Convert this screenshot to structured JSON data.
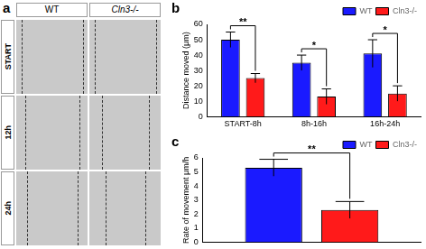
{
  "panel_labels": [
    "a",
    "b",
    "c"
  ],
  "image_grid": {
    "columns": [
      "WT",
      "Cln3-/-"
    ],
    "rows": [
      "START",
      "12h",
      "24h"
    ]
  },
  "chart_data": [
    {
      "type": "bar",
      "y_label": "Distance moved (μm)",
      "categories": [
        "START-8h",
        "8h-16h",
        "16h-24h"
      ],
      "series": [
        {
          "name": "WT",
          "color": "#1a1aff",
          "values": [
            50,
            35,
            41
          ],
          "errors": [
            5,
            5,
            9
          ]
        },
        {
          "name": "Cln3-/-",
          "color": "#ff1a1a",
          "values": [
            25,
            13,
            15
          ],
          "errors": [
            3,
            5,
            5
          ]
        }
      ],
      "significance": [
        {
          "category": "START-8h",
          "label": "**"
        },
        {
          "category": "8h-16h",
          "label": "*"
        },
        {
          "category": "16h-24h",
          "label": "*"
        }
      ],
      "ylim": [
        0,
        60
      ],
      "yticks": [
        0,
        10,
        20,
        30,
        40,
        50,
        60
      ],
      "grid": false,
      "legend": "top-right"
    },
    {
      "type": "bar",
      "y_label": "Rate of movement μm/h",
      "categories": [
        null
      ],
      "series": [
        {
          "name": "WT",
          "color": "#1a1aff",
          "values": [
            5.3
          ],
          "errors": [
            0.6
          ]
        },
        {
          "name": "Cln3-/-",
          "color": "#ff1a1a",
          "values": [
            2.3
          ],
          "errors": [
            0.6
          ]
        }
      ],
      "significance": [
        {
          "category": null,
          "label": "**"
        }
      ],
      "ylim": [
        0,
        6
      ],
      "yticks": [
        0,
        1,
        2,
        3,
        4,
        5,
        6
      ],
      "grid": false,
      "legend": "top-right",
      "tick_labels": "y"
    }
  ]
}
